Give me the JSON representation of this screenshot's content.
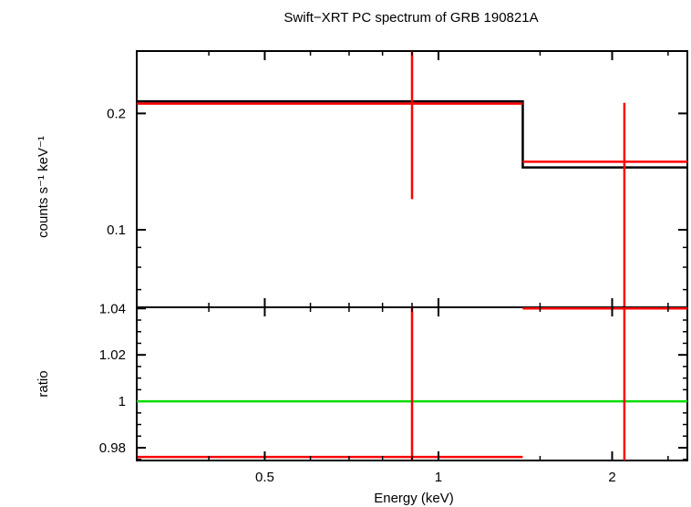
{
  "chart_data": {
    "type": "scatter",
    "title": "Swift−XRT PC spectrum of GRB 190821A",
    "xlabel": "Energy (keV)",
    "x_scale": "log",
    "xlim": [
      0.3,
      2.7
    ],
    "x_ticks": [
      {
        "value": 0.5,
        "label": "0.5"
      },
      {
        "value": 1,
        "label": "1"
      },
      {
        "value": 2,
        "label": "2"
      }
    ],
    "panels": [
      {
        "name": "spectrum",
        "ylabel": "counts s⁻¹ keV⁻¹",
        "y_scale": "log",
        "ylim": [
          0.063,
          0.29
        ],
        "y_ticks": [
          {
            "value": 0.1,
            "label": "0.1"
          },
          {
            "value": 0.2,
            "label": "0.2"
          }
        ],
        "series": [
          {
            "kind": "model-step",
            "color": "#000000",
            "steps": [
              {
                "x_lo": 0.3,
                "x_hi": 1.4,
                "y": 0.215
              },
              {
                "x_lo": 1.4,
                "x_hi": 2.7,
                "y": 0.145
              }
            ]
          },
          {
            "kind": "data-errorbars",
            "color": "#ff0000",
            "points": [
              {
                "x": 0.9,
                "x_lo": 0.3,
                "x_hi": 1.4,
                "y": 0.212,
                "y_lo": 0.12,
                "y_hi": 0.29
              },
              {
                "x": 2.1,
                "x_lo": 1.4,
                "x_hi": 2.7,
                "y": 0.15,
                "y_lo": 0.063,
                "y_hi": 0.213
              }
            ]
          }
        ]
      },
      {
        "name": "ratio",
        "ylabel": "ratio",
        "y_scale": "linear",
        "ylim": [
          0.9745,
          1.0405
        ],
        "y_ticks": [
          {
            "value": 0.98,
            "label": "0.98"
          },
          {
            "value": 1,
            "label": "1"
          },
          {
            "value": 1.02,
            "label": "1.02"
          },
          {
            "value": 1.04,
            "label": "1.04"
          }
        ],
        "reference_line": {
          "y": 1,
          "color": "#00dd00"
        },
        "series": [
          {
            "kind": "data-errorbars",
            "color": "#ff0000",
            "points": [
              {
                "x": 0.9,
                "x_lo": 0.3,
                "x_hi": 1.4,
                "y": 0.976,
                "y_lo": 0.9745,
                "y_hi": 1.0405
              },
              {
                "x": 2.1,
                "x_lo": 1.4,
                "x_hi": 2.7,
                "y": 1.04,
                "y_lo": 0.9745,
                "y_hi": 1.0405
              }
            ]
          }
        ]
      }
    ]
  }
}
